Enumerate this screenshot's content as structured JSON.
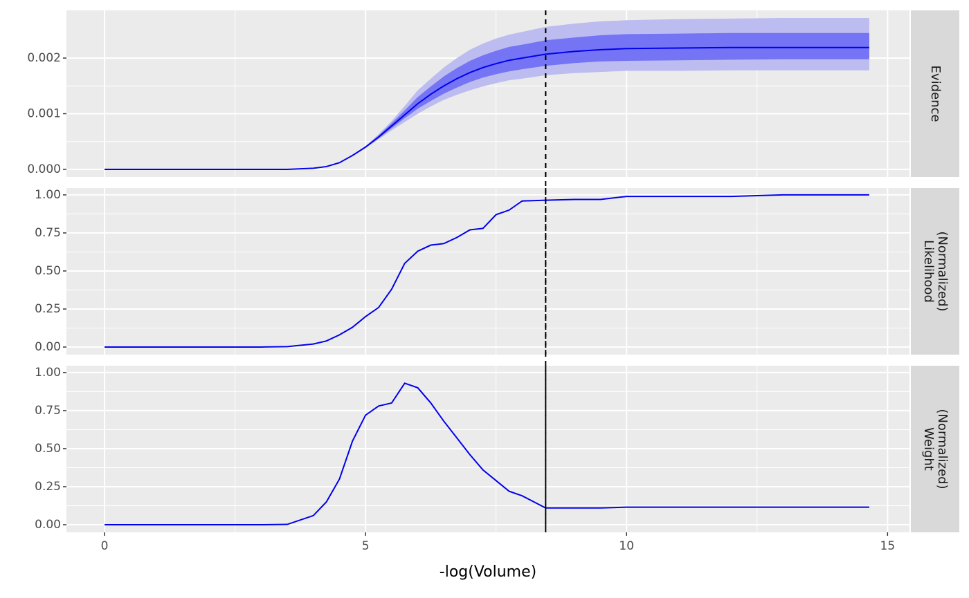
{
  "chart_data": [
    {
      "type": "ribbon-line",
      "strip": [
        "Evidence"
      ],
      "x": [
        0,
        1,
        2,
        3,
        3.5,
        4,
        4.25,
        4.5,
        4.75,
        5,
        5.25,
        5.5,
        5.75,
        6,
        6.25,
        6.5,
        6.75,
        7,
        7.25,
        7.5,
        7.75,
        8,
        8.45,
        9,
        9.5,
        10,
        11,
        12,
        13,
        14,
        14.65
      ],
      "series": [
        {
          "color": "#0000ee",
          "values": [
            0,
            0,
            0,
            0,
            0,
            2e-05,
            5e-05,
            0.00012,
            0.00025,
            0.0004,
            0.00058,
            0.00078,
            0.00098,
            0.00118,
            0.00135,
            0.0015,
            0.00163,
            0.00174,
            0.00183,
            0.0019,
            0.00196,
            0.002,
            0.00207,
            0.00212,
            0.00215,
            0.00217,
            0.00218,
            0.00219,
            0.00219,
            0.00219,
            0.00219
          ]
        }
      ],
      "bands": [
        {
          "color": "#bcbcf0",
          "upper": [
            0,
            0,
            0,
            0,
            0,
            2e-05,
            5e-05,
            0.00012,
            0.00026,
            0.00042,
            0.00063,
            0.00087,
            0.00114,
            0.00142,
            0.00163,
            0.00183,
            0.002,
            0.00215,
            0.00226,
            0.00235,
            0.00242,
            0.00247,
            0.00256,
            0.00262,
            0.00266,
            0.00268,
            0.0027,
            0.00271,
            0.00272,
            0.00272,
            0.00272
          ],
          "lower": [
            0,
            0,
            0,
            0,
            0,
            2e-05,
            5e-05,
            0.00012,
            0.00024,
            0.000385,
            0.00054,
            0.0007,
            0.00085,
            0.001,
            0.00113,
            0.00125,
            0.00134,
            0.00142,
            0.00149,
            0.00155,
            0.0016,
            0.00163,
            0.00169,
            0.00173,
            0.00175,
            0.00177,
            0.00177,
            0.00178,
            0.00178,
            0.00178,
            0.00178
          ]
        },
        {
          "color": "#7474f4",
          "upper": [
            0,
            0,
            0,
            0,
            0,
            2e-05,
            5e-05,
            0.00012,
            0.000255,
            0.000412,
            0.00061,
            0.00083,
            0.00106,
            0.0013,
            0.00149,
            0.00167,
            0.00182,
            0.00195,
            0.00205,
            0.00213,
            0.0022,
            0.00224,
            0.00232,
            0.00237,
            0.00241,
            0.00243,
            0.00244,
            0.00245,
            0.00245,
            0.00245,
            0.00245
          ],
          "lower": [
            0,
            0,
            0,
            0,
            0,
            2e-05,
            5e-05,
            0.00012,
            0.000245,
            0.000392,
            0.00056,
            0.00074,
            0.00092,
            0.00109,
            0.00123,
            0.00136,
            0.00147,
            0.00157,
            0.00165,
            0.00171,
            0.00176,
            0.0018,
            0.00186,
            0.00191,
            0.00194,
            0.00195,
            0.00196,
            0.00197,
            0.00198,
            0.00198,
            0.00198
          ]
        }
      ],
      "xlim": [
        -0.73,
        15.42
      ],
      "ylim": [
        -0.000137,
        0.002857
      ],
      "yticks": [
        {
          "value": 0,
          "label": "0.000"
        },
        {
          "value": 0.001,
          "label": "0.001"
        },
        {
          "value": 0.002,
          "label": "0.002"
        }
      ],
      "vline": 8.45
    },
    {
      "type": "line",
      "strip": [
        "Likelihood",
        "(Normalized)"
      ],
      "x": [
        0,
        1,
        2,
        3,
        3.5,
        4,
        4.25,
        4.5,
        4.75,
        5,
        5.25,
        5.5,
        5.75,
        6,
        6.25,
        6.5,
        6.75,
        7,
        7.25,
        7.5,
        7.75,
        8,
        8.45,
        9,
        9.5,
        10,
        11,
        12,
        13,
        14,
        14.65
      ],
      "series": [
        {
          "color": "#0000ee",
          "values": [
            0,
            0,
            0,
            0,
            0.003,
            0.02,
            0.04,
            0.08,
            0.13,
            0.2,
            0.26,
            0.38,
            0.55,
            0.63,
            0.67,
            0.68,
            0.72,
            0.77,
            0.78,
            0.87,
            0.9,
            0.96,
            0.965,
            0.97,
            0.97,
            0.99,
            0.99,
            0.99,
            1,
            1,
            1
          ]
        }
      ],
      "xlim": [
        -0.73,
        15.42
      ],
      "ylim": [
        -0.05,
        1.045
      ],
      "yticks": [
        {
          "value": 0,
          "label": "0.00"
        },
        {
          "value": 0.25,
          "label": "0.25"
        },
        {
          "value": 0.5,
          "label": "0.50"
        },
        {
          "value": 0.75,
          "label": "0.75"
        },
        {
          "value": 1,
          "label": "1.00"
        }
      ],
      "vline": 8.45
    },
    {
      "type": "line",
      "strip": [
        "Weight",
        "(Normalized)"
      ],
      "x": [
        0,
        1,
        2,
        3,
        3.5,
        4,
        4.25,
        4.5,
        4.75,
        5,
        5.25,
        5.5,
        5.75,
        6,
        6.25,
        6.5,
        6.75,
        7,
        7.25,
        7.5,
        7.75,
        8,
        8.45,
        9,
        9.5,
        10,
        11,
        12,
        13,
        14,
        14.65
      ],
      "series": [
        {
          "color": "#0000ee",
          "values": [
            0,
            0,
            0,
            0,
            0.002,
            0.06,
            0.15,
            0.3,
            0.55,
            0.72,
            0.78,
            0.8,
            0.93,
            0.9,
            0.8,
            0.68,
            0.57,
            0.46,
            0.36,
            0.29,
            0.22,
            0.19,
            0.11,
            0.11,
            0.11,
            0.115,
            0.115,
            0.115,
            0.115,
            0.115,
            0.115
          ]
        }
      ],
      "xlim": [
        -0.73,
        15.42
      ],
      "ylim": [
        -0.05,
        1.045
      ],
      "yticks": [
        {
          "value": 0,
          "label": "0.00"
        },
        {
          "value": 0.25,
          "label": "0.25"
        },
        {
          "value": 0.5,
          "label": "0.50"
        },
        {
          "value": 0.75,
          "label": "0.75"
        },
        {
          "value": 1,
          "label": "1.00"
        }
      ],
      "vline": 8.45,
      "xticks": [
        0,
        5,
        10,
        15
      ],
      "xlabel": "-log(Volume)"
    }
  ]
}
